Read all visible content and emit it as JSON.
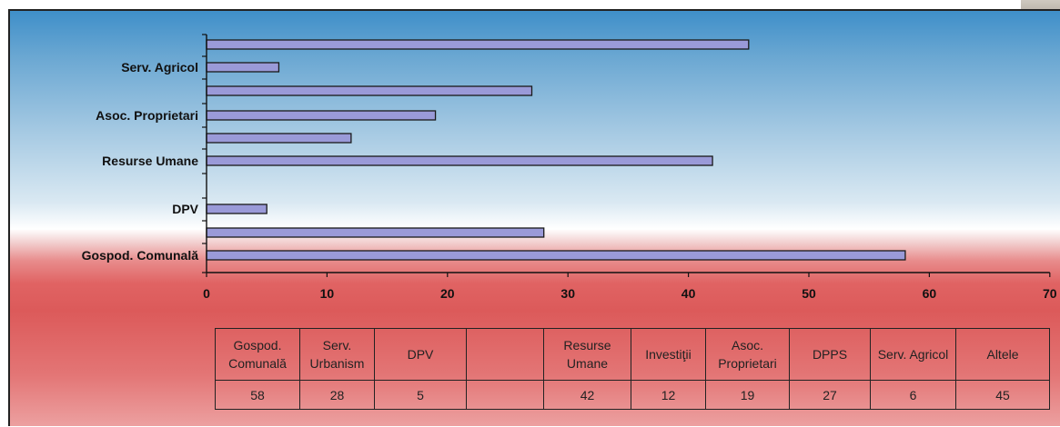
{
  "chart_data": {
    "type": "bar",
    "orientation": "horizontal",
    "categories": [
      "Gospod. Comunală",
      "Serv. Urbanism",
      "DPV",
      "",
      "Resurse Umane",
      "Investiţii",
      "Asoc. Proprietari",
      "DPPS",
      "Serv. Agricol",
      "Altele"
    ],
    "values": [
      58,
      28,
      5,
      null,
      42,
      12,
      19,
      27,
      6,
      45
    ],
    "visible_axis_labels": [
      "Gospod. Comunală",
      "",
      "DPV",
      "",
      "Resurse Umane",
      "",
      "Asoc. Proprietari",
      "",
      "Serv. Agricol",
      ""
    ],
    "xlim": [
      0,
      70
    ],
    "xticks": [
      0,
      10,
      20,
      30,
      40,
      50,
      60,
      70
    ],
    "bar_color": "#9a9ad8",
    "grid": false,
    "legend": "none"
  },
  "table": {
    "headers": [
      "Gospod. Comunală",
      "Serv. Urbanism",
      "DPV",
      "",
      "Resurse Umane",
      "Investiţii",
      "Asoc. Proprietari",
      "DPPS",
      "Serv. Agricol",
      "Altele"
    ],
    "values": [
      "58",
      "28",
      "5",
      "",
      "42",
      "12",
      "19",
      "27",
      "6",
      "45"
    ]
  }
}
